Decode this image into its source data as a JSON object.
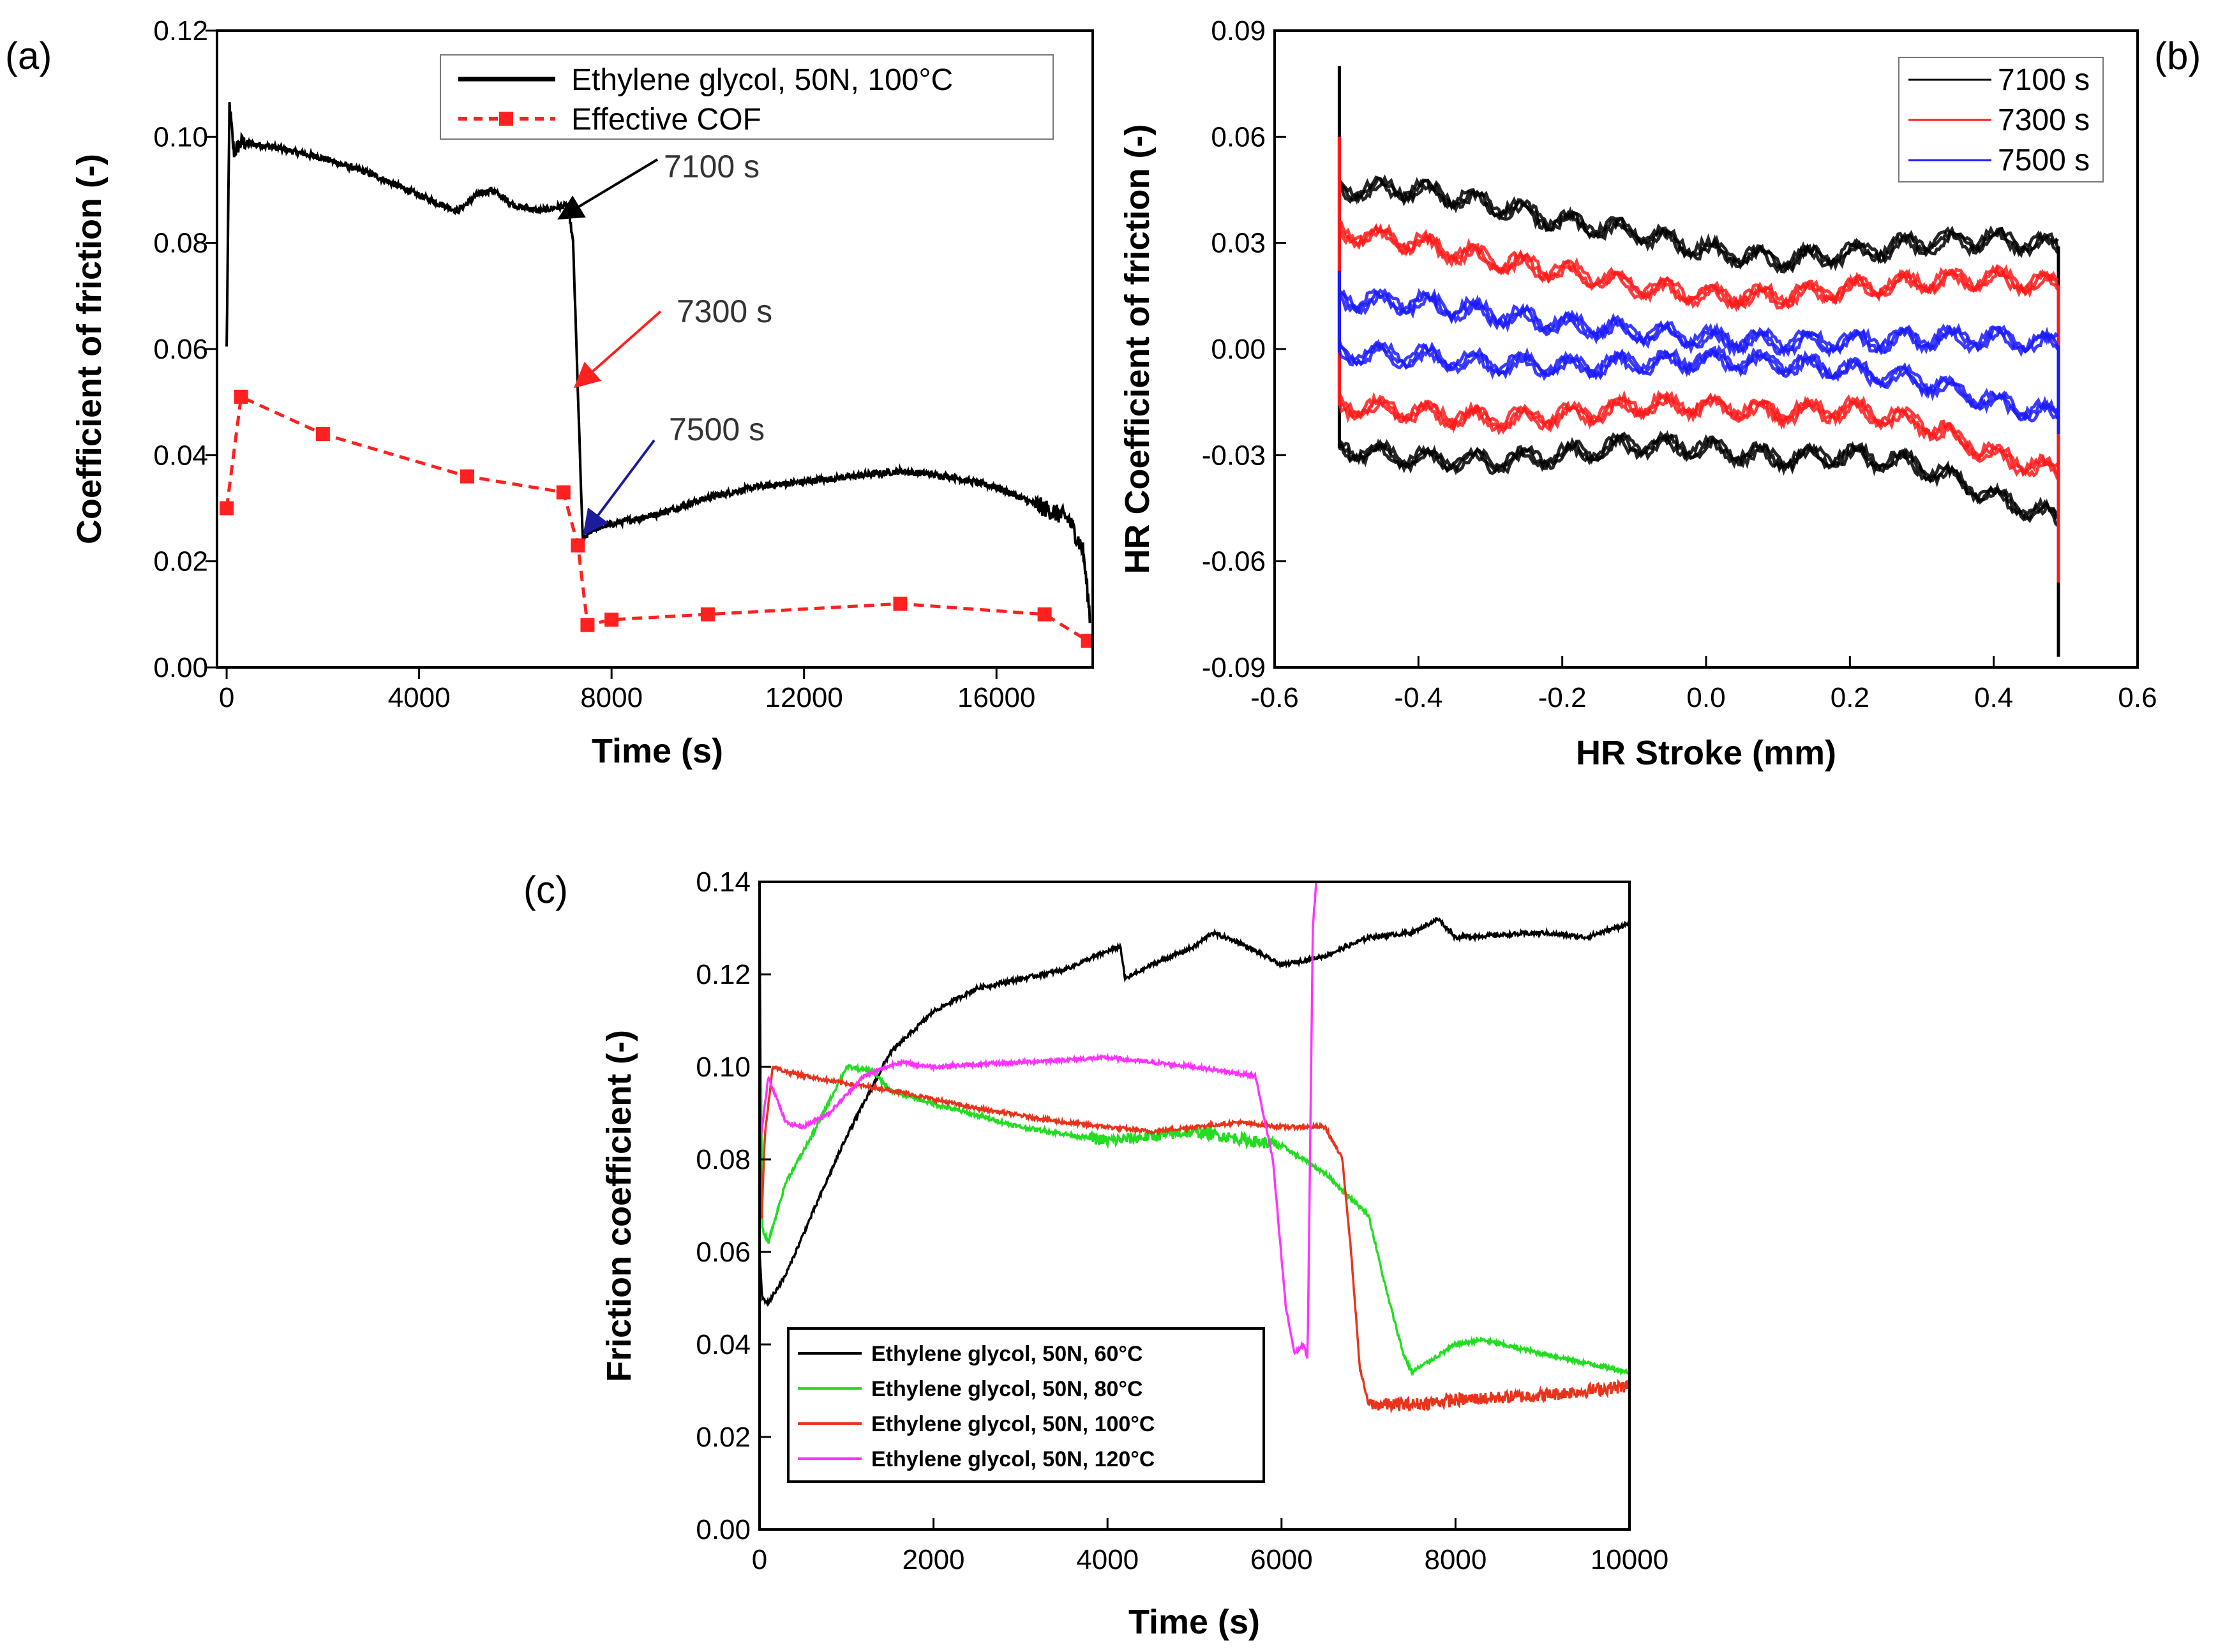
{
  "chart_data": [
    {
      "panel": "(a)",
      "type": "line",
      "xlabel": "Time (s)",
      "ylabel": "Coefficient of friction (-)",
      "xlim": [
        -200,
        18000
      ],
      "ylim": [
        0.0,
        0.12
      ],
      "xticks": [
        0,
        4000,
        8000,
        12000,
        16000
      ],
      "xtick_labels": [
        "0",
        "4000",
        "8000",
        "12000",
        "16000"
      ],
      "yticks": [
        0.0,
        0.02,
        0.04,
        0.06,
        0.08,
        0.1,
        0.12
      ],
      "ytick_labels": [
        "0.00",
        "0.02",
        "0.04",
        "0.06",
        "0.08",
        "0.10",
        "0.12"
      ],
      "legend_position": "top-right",
      "series": [
        {
          "name": "Ethylene glycol, 50N, 100°C",
          "color": "#000000",
          "style": "solid",
          "x": [
            0,
            60,
            150,
            300,
            1000,
            2000,
            3000,
            4000,
            4800,
            5200,
            5500,
            6000,
            6500,
            7000,
            7100,
            7200,
            7300,
            7400,
            7600,
            8000,
            9000,
            10000,
            11000,
            12000,
            13000,
            14000,
            15000,
            16000,
            16500,
            17000,
            17500,
            17800,
            17950
          ],
          "y": [
            0.06,
            0.106,
            0.097,
            0.099,
            0.098,
            0.096,
            0.093,
            0.089,
            0.086,
            0.089,
            0.09,
            0.087,
            0.086,
            0.087,
            0.087,
            0.08,
            0.052,
            0.024,
            0.026,
            0.027,
            0.029,
            0.032,
            0.034,
            0.035,
            0.036,
            0.037,
            0.036,
            0.034,
            0.032,
            0.03,
            0.028,
            0.022,
            0.009
          ]
        },
        {
          "name": "Effective COF",
          "color": "#ff2020",
          "style": "dashed-square",
          "x": [
            0,
            300,
            2000,
            5000,
            7000,
            7300,
            7500,
            8000,
            10000,
            14000,
            17000,
            17900
          ],
          "y": [
            0.03,
            0.051,
            0.044,
            0.036,
            0.033,
            0.023,
            0.008,
            0.009,
            0.01,
            0.012,
            0.01,
            0.005
          ]
        }
      ],
      "annotations": [
        {
          "text": "7100 s",
          "color": "#000000",
          "x": 7100,
          "y": 0.087
        },
        {
          "text": "7300 s",
          "color": "#ff2020",
          "x": 7300,
          "y": 0.053
        },
        {
          "text": "7500 s",
          "color": "#1c1c9c",
          "x": 7450,
          "y": 0.025
        }
      ]
    },
    {
      "panel": "(b)",
      "type": "line",
      "xlabel": "HR Stroke (mm)",
      "ylabel": "HR Coefficient of friction (-)",
      "xlim": [
        -0.6,
        0.6
      ],
      "ylim": [
        -0.09,
        0.09
      ],
      "xticks": [
        -0.6,
        -0.4,
        -0.2,
        0.0,
        0.2,
        0.4,
        0.6
      ],
      "xtick_labels": [
        "-0.6",
        "-0.4",
        "-0.2",
        "0.0",
        "0.2",
        "0.4",
        "0.6"
      ],
      "yticks": [
        -0.09,
        -0.06,
        -0.03,
        0.0,
        0.03,
        0.06,
        0.09
      ],
      "ytick_labels": [
        "-0.09",
        "-0.06",
        "-0.03",
        "0.00",
        "0.03",
        "0.06",
        "0.09"
      ],
      "legend_position": "top-right",
      "series": [
        {
          "name": "7100 s",
          "color": "#000000",
          "x": [
            -0.51,
            -0.4,
            -0.3,
            -0.2,
            -0.1,
            0.0,
            0.1,
            0.2,
            0.3,
            0.4,
            0.49
          ],
          "upper": [
            0.045,
            0.045,
            0.041,
            0.036,
            0.033,
            0.028,
            0.025,
            0.027,
            0.03,
            0.031,
            0.029
          ],
          "lower": [
            -0.028,
            -0.031,
            -0.032,
            -0.03,
            -0.027,
            -0.028,
            -0.031,
            -0.03,
            -0.033,
            -0.042,
            -0.048
          ]
        },
        {
          "name": "7300 s",
          "color": "#ff1a1a",
          "x": [
            -0.51,
            -0.4,
            -0.3,
            -0.2,
            -0.1,
            0.0,
            0.1,
            0.2,
            0.3,
            0.4,
            0.49
          ],
          "upper": [
            0.033,
            0.03,
            0.025,
            0.022,
            0.018,
            0.015,
            0.015,
            0.017,
            0.019,
            0.02,
            0.018
          ],
          "lower": [
            -0.016,
            -0.018,
            -0.02,
            -0.019,
            -0.016,
            -0.016,
            -0.018,
            -0.017,
            -0.021,
            -0.03,
            -0.035
          ]
        },
        {
          "name": "7500 s",
          "color": "#1a1aff",
          "x": [
            -0.51,
            -0.4,
            -0.3,
            -0.2,
            -0.1,
            0.0,
            0.1,
            0.2,
            0.3,
            0.4,
            0.49
          ],
          "upper": [
            0.014,
            0.013,
            0.01,
            0.007,
            0.005,
            0.003,
            0.002,
            0.002,
            0.003,
            0.003,
            0.001
          ],
          "lower": [
            -0.001,
            -0.002,
            -0.004,
            -0.005,
            -0.004,
            -0.003,
            -0.004,
            -0.006,
            -0.009,
            -0.015,
            -0.019
          ]
        }
      ]
    },
    {
      "panel": "(c)",
      "type": "line",
      "xlabel": "Time (s)",
      "ylabel": "Friction coefficient (-)",
      "xlim": [
        0,
        10000
      ],
      "ylim": [
        0.0,
        0.14
      ],
      "xticks": [
        0,
        2000,
        4000,
        6000,
        8000,
        10000
      ],
      "xtick_labels": [
        "0",
        "2000",
        "4000",
        "6000",
        "8000",
        "10000"
      ],
      "yticks": [
        0.0,
        0.02,
        0.04,
        0.06,
        0.08,
        0.1,
        0.12,
        0.14
      ],
      "ytick_labels": [
        "0.00",
        "0.02",
        "0.04",
        "0.06",
        "0.08",
        "0.10",
        "0.12",
        "0.14"
      ],
      "legend_position": "bottom-left",
      "series": [
        {
          "name": "Ethylene glycol, 50N, 60°C",
          "color": "#000000",
          "x": [
            0,
            30,
            100,
            300,
            600,
            1000,
            1500,
            2000,
            2500,
            3000,
            3500,
            4000,
            4150,
            4200,
            4500,
            5000,
            5200,
            5500,
            6000,
            6500,
            7000,
            7500,
            7800,
            8000,
            9000,
            9500,
            10000
          ],
          "y": [
            0.06,
            0.05,
            0.049,
            0.055,
            0.068,
            0.085,
            0.103,
            0.112,
            0.117,
            0.119,
            0.121,
            0.125,
            0.126,
            0.119,
            0.122,
            0.126,
            0.129,
            0.127,
            0.122,
            0.124,
            0.128,
            0.129,
            0.132,
            0.128,
            0.129,
            0.128,
            0.131
          ]
        },
        {
          "name": "Ethylene glycol, 50N, 80°C",
          "color": "#22dd22",
          "x": [
            0,
            30,
            100,
            300,
            600,
            1000,
            1300,
            1500,
            2000,
            3000,
            4000,
            5000,
            6000,
            6500,
            7000,
            7200,
            7400,
            7500,
            8000,
            8300,
            9000,
            10000
          ],
          "y": [
            0.14,
            0.065,
            0.062,
            0.075,
            0.085,
            0.1,
            0.099,
            0.095,
            0.092,
            0.087,
            0.084,
            0.086,
            0.083,
            0.077,
            0.068,
            0.052,
            0.038,
            0.034,
            0.04,
            0.041,
            0.038,
            0.034
          ]
        },
        {
          "name": "Ethylene glycol, 50N, 100°C",
          "color": "#e8341c",
          "x": [
            0,
            20,
            60,
            150,
            300,
            800,
            1500,
            2500,
            3500,
            4500,
            5000,
            5500,
            6000,
            6500,
            6700,
            6800,
            6900,
            7000,
            7500,
            8000,
            9000,
            10000
          ],
          "y": [
            0.13,
            0.065,
            0.085,
            0.1,
            0.099,
            0.097,
            0.095,
            0.091,
            0.088,
            0.086,
            0.087,
            0.088,
            0.087,
            0.087,
            0.08,
            0.06,
            0.035,
            0.027,
            0.027,
            0.028,
            0.029,
            0.031
          ]
        },
        {
          "name": "Ethylene glycol, 50N, 120°C",
          "color": "#ff33ff",
          "x": [
            0,
            20,
            100,
            300,
            500,
            800,
            1200,
            1600,
            2000,
            3000,
            4000,
            5000,
            5700,
            5900,
            6050,
            6150,
            6250,
            6300,
            6360,
            6400
          ],
          "y": [
            0.09,
            0.085,
            0.098,
            0.088,
            0.087,
            0.09,
            0.098,
            0.101,
            0.1,
            0.101,
            0.102,
            0.1,
            0.098,
            0.08,
            0.048,
            0.038,
            0.04,
            0.037,
            0.13,
            0.14
          ]
        }
      ]
    }
  ],
  "labels": {
    "panel_a": "(a)",
    "panel_b": "(b)",
    "panel_c": "(c)"
  }
}
